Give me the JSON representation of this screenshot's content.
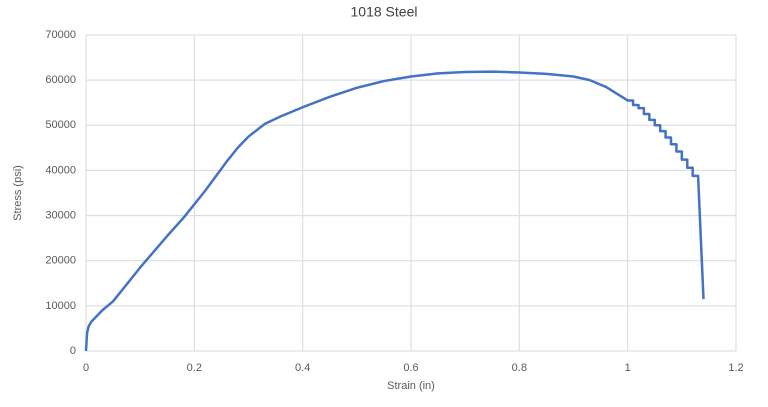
{
  "chart_data": {
    "type": "line",
    "title": "1018 Steel",
    "x_label": "Strain (in)",
    "y_label": "Stress (psi)",
    "x": [
      0,
      0.002,
      0.005,
      0.01,
      0.03,
      0.05,
      0.1,
      0.15,
      0.18,
      0.22,
      0.26,
      0.28,
      0.3,
      0.33,
      0.36,
      0.4,
      0.45,
      0.5,
      0.55,
      0.6,
      0.65,
      0.7,
      0.75,
      0.8,
      0.85,
      0.9,
      0.93,
      0.96,
      0.98,
      1.0,
      1.01,
      1.01,
      1.02,
      1.02,
      1.03,
      1.03,
      1.04,
      1.04,
      1.05,
      1.05,
      1.06,
      1.06,
      1.07,
      1.07,
      1.08,
      1.08,
      1.09,
      1.09,
      1.1,
      1.1,
      1.11,
      1.11,
      1.12,
      1.12,
      1.13,
      1.14
    ],
    "series": [
      {
        "name": "Stress",
        "color": "#4472c4",
        "values": [
          0,
          4000,
          5500,
          6500,
          9000,
          11000,
          18500,
          25500,
          29500,
          35500,
          42000,
          45000,
          47500,
          50300,
          52000,
          54000,
          56300,
          58300,
          59800,
          60800,
          61500,
          61800,
          61900,
          61700,
          61400,
          60800,
          60000,
          58500,
          57000,
          55500,
          55500,
          54500,
          54500,
          53800,
          53800,
          52500,
          52500,
          51200,
          51200,
          50000,
          50000,
          48700,
          48700,
          47300,
          47300,
          45800,
          45800,
          44200,
          44200,
          42400,
          42400,
          40600,
          40600,
          38800,
          38800,
          11500
        ]
      }
    ],
    "xlim": [
      0,
      1.2
    ],
    "xticks": [
      0,
      0.2,
      0.4,
      0.6,
      0.8,
      1,
      1.2
    ],
    "ylim": [
      0,
      70000
    ],
    "yticks": [
      0,
      10000,
      20000,
      30000,
      40000,
      50000,
      60000,
      70000
    ],
    "grid": true
  }
}
